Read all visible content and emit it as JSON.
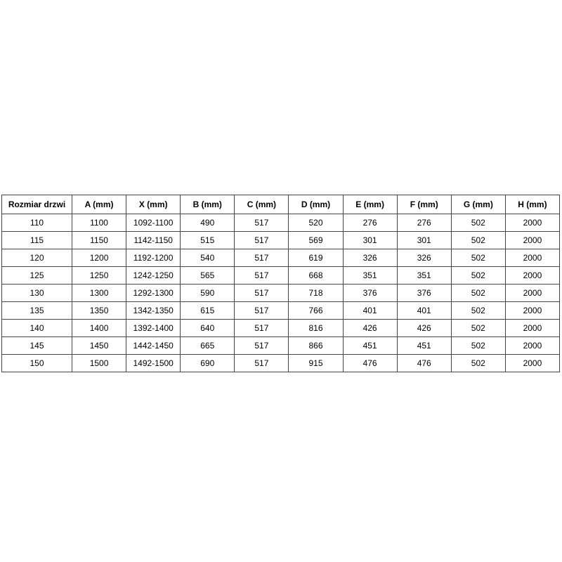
{
  "table": {
    "headers": [
      "Rozmiar drzwi",
      "A (mm)",
      "X (mm)",
      "B (mm)",
      "C (mm)",
      "D (mm)",
      "E (mm)",
      "F (mm)",
      "G (mm)",
      "H (mm)"
    ],
    "rows": [
      [
        "110",
        "1100",
        "1092-1100",
        "490",
        "517",
        "520",
        "276",
        "276",
        "502",
        "2000"
      ],
      [
        "115",
        "1150",
        "1142-1150",
        "515",
        "517",
        "569",
        "301",
        "301",
        "502",
        "2000"
      ],
      [
        "120",
        "1200",
        "1192-1200",
        "540",
        "517",
        "619",
        "326",
        "326",
        "502",
        "2000"
      ],
      [
        "125",
        "1250",
        "1242-1250",
        "565",
        "517",
        "668",
        "351",
        "351",
        "502",
        "2000"
      ],
      [
        "130",
        "1300",
        "1292-1300",
        "590",
        "517",
        "718",
        "376",
        "376",
        "502",
        "2000"
      ],
      [
        "135",
        "1350",
        "1342-1350",
        "615",
        "517",
        "766",
        "401",
        "401",
        "502",
        "2000"
      ],
      [
        "140",
        "1400",
        "1392-1400",
        "640",
        "517",
        "816",
        "426",
        "426",
        "502",
        "2000"
      ],
      [
        "145",
        "1450",
        "1442-1450",
        "665",
        "517",
        "866",
        "451",
        "451",
        "502",
        "2000"
      ],
      [
        "150",
        "1500",
        "1492-1500",
        "690",
        "517",
        "915",
        "476",
        "476",
        "502",
        "2000"
      ]
    ],
    "border_color": "#444444",
    "text_color": "#000000",
    "background_color": "#ffffff"
  }
}
